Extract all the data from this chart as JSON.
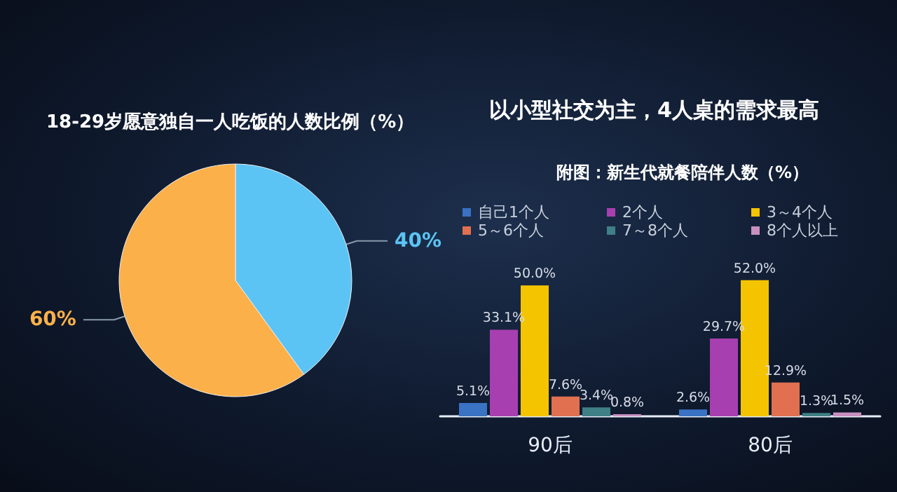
{
  "chart_data": [
    {
      "type": "pie",
      "title": "18-29岁愿意独自一人吃饭的人数比例（%）",
      "categories": [
        null,
        null
      ],
      "values": [
        40,
        60
      ],
      "colors": [
        "#5bc4f5",
        "#fbb04a"
      ],
      "value_labels": [
        "40%",
        "60%"
      ],
      "legend": false
    },
    {
      "type": "bar",
      "title": "以小型社交为主，4人桌的需求最高",
      "subtitle": "附图：新生代就餐陪伴人数（%）",
      "categories": [
        "90后",
        "80后"
      ],
      "legend": "top",
      "series": [
        {
          "name": "自己1个人",
          "color": "#3a72c4",
          "values": [
            5.1,
            2.6
          ],
          "value_labels": [
            "5.1%",
            "2.6%"
          ]
        },
        {
          "name": "2个人",
          "color": "#a83fb0",
          "values": [
            33.1,
            29.7
          ],
          "value_labels": [
            "33.1%",
            "29.7%"
          ]
        },
        {
          "name": "3～4个人",
          "color": "#f5c400",
          "values": [
            50.0,
            52.0
          ],
          "value_labels": [
            "50.0%",
            "52.0%"
          ]
        },
        {
          "name": "5～6个人",
          "color": "#e07050",
          "values": [
            7.6,
            12.9
          ],
          "value_labels": [
            "7.6%",
            "12.9%"
          ]
        },
        {
          "name": "7～8个人",
          "color": "#3f7f86",
          "values": [
            3.4,
            1.3
          ],
          "value_labels": [
            "3.4%",
            "1.3%"
          ]
        },
        {
          "name": "8个人以上",
          "color": "#c890c0",
          "values": [
            0.8,
            1.5
          ],
          "value_labels": [
            "0.8%",
            "1.5%"
          ]
        }
      ]
    }
  ]
}
